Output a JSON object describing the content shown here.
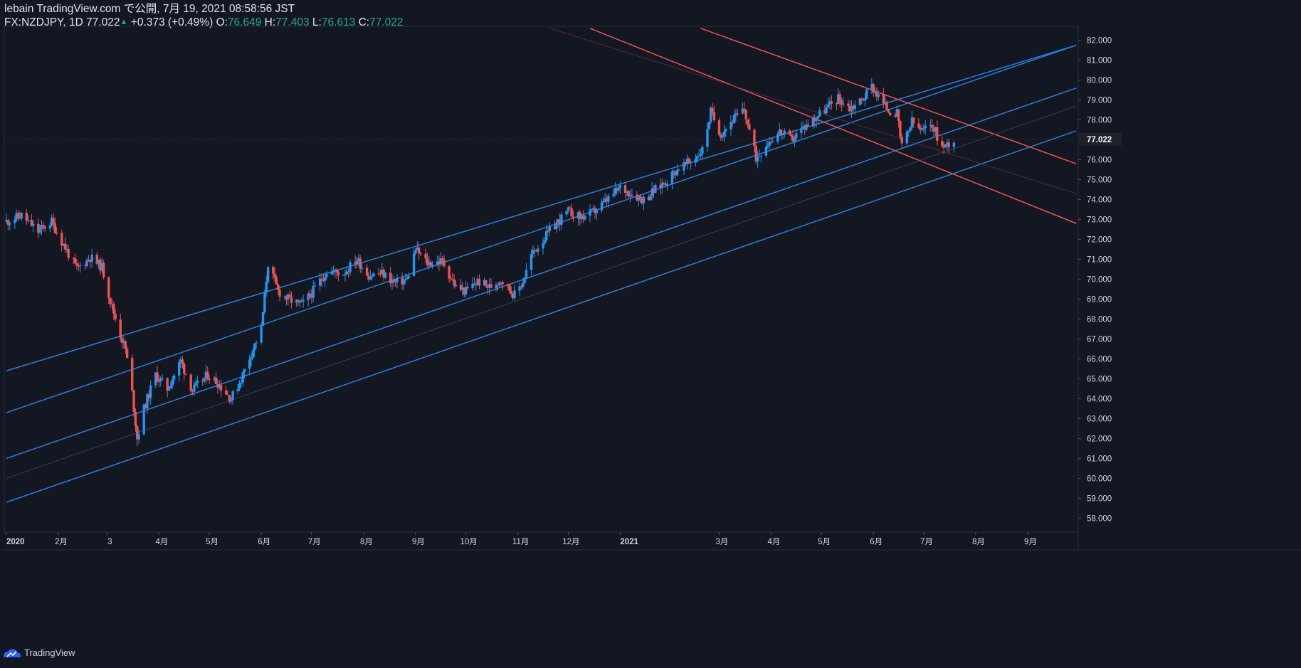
{
  "header": {
    "line1": "lebain TradingView.com で公開, 7月 19, 2021 08:58:56 JST",
    "symbol": "FX:NZDJPY, 1D",
    "last": "77.022",
    "change_arrow": "▲",
    "change": "+0.373 (+0.49%)",
    "o_label": "O:",
    "o": "76.649",
    "h_label": "H:",
    "h": "77.403",
    "l_label": "L:",
    "l": "76.613",
    "c_label": "C:",
    "c": "77.022"
  },
  "footer": {
    "brand": "TradingView"
  },
  "colors": {
    "background": "#131722",
    "up": "#2196f3",
    "down": "#ef5350",
    "channel": "#2a7fd8",
    "downtrend": "#ef5350",
    "text": "#d1d4dc",
    "header_values": "#26a69a"
  },
  "chart_data": {
    "type": "candlestick",
    "symbol": "FX:NZDJPY",
    "interval": "1D",
    "y_ticks": [
      "82.000",
      "81.000",
      "80.000",
      "79.000",
      "78.000",
      "77.000",
      "76.000",
      "75.000",
      "74.000",
      "73.000",
      "72.000",
      "71.000",
      "70.000",
      "69.000",
      "68.000",
      "67.000",
      "66.000",
      "65.000",
      "64.000",
      "63.000",
      "62.000",
      "61.000",
      "60.000",
      "59.000",
      "58.000"
    ],
    "ylim": [
      57.3,
      82.7
    ],
    "last_price_label": "77.022",
    "x_ticks": [
      {
        "label": "2020",
        "date": "2020-01-01"
      },
      {
        "label": "2月",
        "date": "2020-02-01"
      },
      {
        "label": "3",
        "date": "2020-03-01"
      },
      {
        "label": "4月",
        "date": "2020-04-01"
      },
      {
        "label": "5月",
        "date": "2020-05-01"
      },
      {
        "label": "6月",
        "date": "2020-06-01"
      },
      {
        "label": "7月",
        "date": "2020-07-01"
      },
      {
        "label": "8月",
        "date": "2020-08-01"
      },
      {
        "label": "9月",
        "date": "2020-09-01"
      },
      {
        "label": "10月",
        "date": "2020-10-01"
      },
      {
        "label": "11月",
        "date": "2020-11-01"
      },
      {
        "label": "12月",
        "date": "2020-12-01"
      },
      {
        "label": "2021",
        "date": "2021-01-01"
      },
      {
        "label": "3月",
        "date": "2021-03-01"
      },
      {
        "label": "4月",
        "date": "2021-04-01"
      },
      {
        "label": "5月",
        "date": "2021-05-01"
      },
      {
        "label": "6月",
        "date": "2021-06-01"
      },
      {
        "label": "7月",
        "date": "2021-07-01"
      },
      {
        "label": "8月",
        "date": "2021-08-01"
      },
      {
        "label": "9月",
        "date": "2021-09-01"
      }
    ],
    "price_path": [
      [
        "2020-01-01",
        72.9
      ],
      [
        "2020-01-10",
        73.2
      ],
      [
        "2020-01-20",
        72.4
      ],
      [
        "2020-01-28",
        72.9
      ],
      [
        "2020-02-03",
        71.9
      ],
      [
        "2020-02-12",
        70.5
      ],
      [
        "2020-02-20",
        71.1
      ],
      [
        "2020-02-27",
        70.6
      ],
      [
        "2020-03-04",
        68.6
      ],
      [
        "2020-03-09",
        67.2
      ],
      [
        "2020-03-12",
        66.5
      ],
      [
        "2020-03-16",
        64.3
      ],
      [
        "2020-03-19",
        62.0
      ],
      [
        "2020-03-23",
        63.5
      ],
      [
        "2020-03-30",
        65.2
      ],
      [
        "2020-04-06",
        64.5
      ],
      [
        "2020-04-14",
        65.9
      ],
      [
        "2020-04-21",
        64.4
      ],
      [
        "2020-04-30",
        65.2
      ],
      [
        "2020-05-06",
        64.8
      ],
      [
        "2020-05-14",
        64.0
      ],
      [
        "2020-05-20",
        65.0
      ],
      [
        "2020-05-26",
        66.3
      ],
      [
        "2020-06-01",
        67.5
      ],
      [
        "2020-06-05",
        70.8
      ],
      [
        "2020-06-11",
        69.4
      ],
      [
        "2020-06-17",
        69.0
      ],
      [
        "2020-06-25",
        68.7
      ],
      [
        "2020-07-01",
        69.3
      ],
      [
        "2020-07-10",
        70.4
      ],
      [
        "2020-07-20",
        70.3
      ],
      [
        "2020-07-28",
        71.0
      ],
      [
        "2020-08-04",
        70.2
      ],
      [
        "2020-08-12",
        70.3
      ],
      [
        "2020-08-20",
        69.8
      ],
      [
        "2020-08-27",
        70.0
      ],
      [
        "2020-09-01",
        71.5
      ],
      [
        "2020-09-08",
        70.8
      ],
      [
        "2020-09-17",
        70.9
      ],
      [
        "2020-09-25",
        69.6
      ],
      [
        "2020-10-01",
        69.4
      ],
      [
        "2020-10-08",
        69.9
      ],
      [
        "2020-10-15",
        69.6
      ],
      [
        "2020-10-22",
        70.0
      ],
      [
        "2020-10-30",
        69.2
      ],
      [
        "2020-11-04",
        69.9
      ],
      [
        "2020-11-09",
        71.2
      ],
      [
        "2020-11-16",
        72.0
      ],
      [
        "2020-11-24",
        72.8
      ],
      [
        "2020-12-01",
        73.4
      ],
      [
        "2020-12-08",
        73.1
      ],
      [
        "2020-12-15",
        73.3
      ],
      [
        "2020-12-22",
        73.8
      ],
      [
        "2021-01-01",
        74.6
      ],
      [
        "2021-01-08",
        74.3
      ],
      [
        "2021-01-15",
        74.0
      ],
      [
        "2021-01-22",
        74.5
      ],
      [
        "2021-01-29",
        75.0
      ],
      [
        "2021-02-05",
        75.6
      ],
      [
        "2021-02-12",
        75.9
      ],
      [
        "2021-02-19",
        76.5
      ],
      [
        "2021-02-24",
        78.4
      ],
      [
        "2021-03-02",
        77.3
      ],
      [
        "2021-03-09",
        78.0
      ],
      [
        "2021-03-16",
        78.5
      ],
      [
        "2021-03-23",
        76.1
      ],
      [
        "2021-03-29",
        76.8
      ],
      [
        "2021-04-06",
        77.4
      ],
      [
        "2021-04-13",
        77.0
      ],
      [
        "2021-04-20",
        77.6
      ],
      [
        "2021-04-27",
        78.1
      ],
      [
        "2021-05-04",
        78.6
      ],
      [
        "2021-05-11",
        79.1
      ],
      [
        "2021-05-18",
        78.6
      ],
      [
        "2021-05-25",
        79.0
      ],
      [
        "2021-05-31",
        79.7
      ],
      [
        "2021-06-04",
        79.2
      ],
      [
        "2021-06-10",
        78.5
      ],
      [
        "2021-06-15",
        78.3
      ],
      [
        "2021-06-18",
        76.6
      ],
      [
        "2021-06-24",
        77.9
      ],
      [
        "2021-06-30",
        77.4
      ],
      [
        "2021-07-06",
        77.8
      ],
      [
        "2021-07-12",
        76.6
      ],
      [
        "2021-07-19",
        77.02
      ]
    ],
    "trendlines": [
      {
        "color": "#2a7fd8",
        "p1": [
          "2020-01-01",
          65.4
        ],
        "p2": [
          "2021-09-30",
          81.75
        ]
      },
      {
        "color": "#2a7fd8",
        "p1": [
          "2020-01-01",
          63.3
        ],
        "p2": [
          "2021-09-30",
          81.75
        ]
      },
      {
        "color": "#2a7fd8",
        "p1": [
          "2020-01-01",
          61.0
        ],
        "p2": [
          "2021-09-30",
          79.6
        ]
      },
      {
        "color": "#2a7fd8",
        "p1": [
          "2020-01-01",
          58.8
        ],
        "p2": [
          "2021-09-30",
          77.45
        ]
      },
      {
        "color": "#ef5350",
        "p1": [
          "2020-12-14",
          82.6
        ],
        "p2": [
          "2021-09-30",
          72.8
        ]
      },
      {
        "color": "#ef5350",
        "p1": [
          "2021-02-18",
          82.6
        ],
        "p2": [
          "2021-09-30",
          75.8
        ]
      }
    ]
  }
}
